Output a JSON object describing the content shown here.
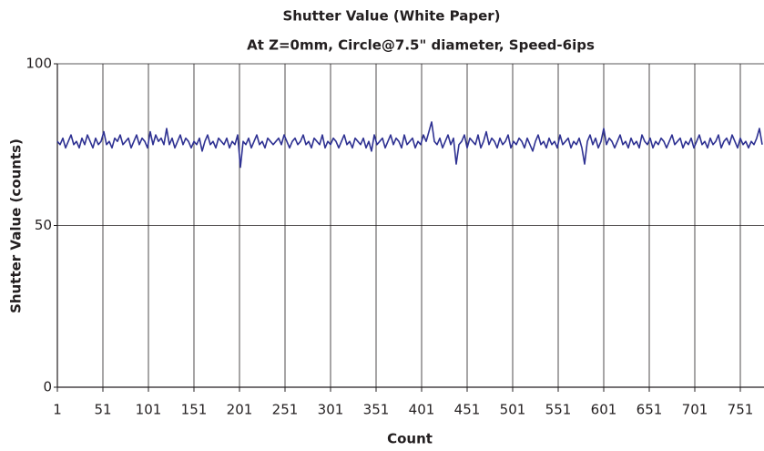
{
  "chart_data": {
    "type": "line",
    "title": "Shutter Value (White Paper)",
    "subtitle": "At Z=0mm, Circle@7.5\" diameter, Speed-6ips",
    "x_label": "Count",
    "y_label": "Shutter Value (counts)",
    "xlim": [
      1,
      777
    ],
    "ylim": [
      0,
      100
    ],
    "xticks": [
      1,
      51,
      101,
      151,
      201,
      251,
      301,
      351,
      401,
      451,
      501,
      551,
      601,
      651,
      701,
      751
    ],
    "yticks": [
      0,
      50,
      100
    ],
    "grid": true,
    "x": [
      1,
      4,
      7,
      10,
      13,
      16,
      19,
      22,
      25,
      28,
      31,
      34,
      37,
      40,
      43,
      46,
      49,
      52,
      55,
      58,
      61,
      64,
      67,
      70,
      73,
      76,
      79,
      82,
      85,
      88,
      91,
      94,
      97,
      100,
      103,
      106,
      109,
      112,
      115,
      118,
      121,
      124,
      127,
      130,
      133,
      136,
      139,
      142,
      145,
      148,
      151,
      154,
      157,
      160,
      163,
      166,
      169,
      172,
      175,
      178,
      181,
      184,
      187,
      190,
      193,
      196,
      199,
      202,
      205,
      208,
      211,
      214,
      217,
      220,
      223,
      226,
      229,
      232,
      235,
      238,
      241,
      244,
      247,
      250,
      253,
      256,
      259,
      262,
      265,
      268,
      271,
      274,
      277,
      280,
      283,
      286,
      289,
      292,
      295,
      298,
      301,
      304,
      307,
      310,
      313,
      316,
      319,
      322,
      325,
      328,
      331,
      334,
      337,
      340,
      343,
      346,
      349,
      352,
      355,
      358,
      361,
      364,
      367,
      370,
      373,
      376,
      379,
      382,
      385,
      388,
      391,
      394,
      397,
      400,
      403,
      406,
      409,
      412,
      415,
      418,
      421,
      424,
      427,
      430,
      433,
      436,
      439,
      442,
      445,
      448,
      451,
      454,
      457,
      460,
      463,
      466,
      469,
      472,
      475,
      478,
      481,
      484,
      487,
      490,
      493,
      496,
      499,
      502,
      505,
      508,
      511,
      514,
      517,
      520,
      523,
      526,
      529,
      532,
      535,
      538,
      541,
      544,
      547,
      550,
      553,
      556,
      559,
      562,
      565,
      568,
      571,
      574,
      577,
      580,
      583,
      586,
      589,
      592,
      595,
      598,
      601,
      604,
      607,
      610,
      613,
      616,
      619,
      622,
      625,
      628,
      631,
      634,
      637,
      640,
      643,
      646,
      649,
      652,
      655,
      658,
      661,
      664,
      667,
      670,
      673,
      676,
      679,
      682,
      685,
      688,
      691,
      694,
      697,
      700,
      703,
      706,
      709,
      712,
      715,
      718,
      721,
      724,
      727,
      730,
      733,
      736,
      739,
      742,
      745,
      748,
      751,
      754,
      757,
      760,
      763,
      766,
      769,
      772,
      775
    ],
    "series": [
      {
        "name": "Shutter Value",
        "color": "#2e3192",
        "values": [
          76,
          75,
          77,
          74,
          76,
          78,
          75,
          76,
          74,
          77,
          75,
          78,
          76,
          74,
          77,
          75,
          76,
          79,
          75,
          76,
          74,
          77,
          76,
          78,
          75,
          76,
          77,
          74,
          76,
          78,
          75,
          77,
          76,
          74,
          79,
          75,
          78,
          76,
          77,
          75,
          80,
          75,
          77,
          74,
          76,
          78,
          75,
          77,
          76,
          74,
          76,
          75,
          77,
          73,
          76,
          78,
          75,
          76,
          74,
          77,
          76,
          75,
          77,
          74,
          76,
          75,
          78,
          68,
          76,
          75,
          77,
          74,
          76,
          78,
          75,
          76,
          74,
          77,
          76,
          75,
          76,
          77,
          75,
          78,
          76,
          74,
          76,
          77,
          75,
          76,
          78,
          75,
          76,
          74,
          77,
          76,
          75,
          78,
          74,
          76,
          75,
          77,
          76,
          74,
          76,
          78,
          75,
          76,
          74,
          77,
          76,
          75,
          77,
          74,
          76,
          73,
          78,
          75,
          76,
          77,
          74,
          76,
          78,
          75,
          77,
          76,
          74,
          78,
          75,
          76,
          77,
          74,
          76,
          75,
          78,
          76,
          79,
          82,
          76,
          75,
          77,
          74,
          76,
          78,
          75,
          77,
          69,
          75,
          76,
          78,
          74,
          77,
          76,
          75,
          78,
          74,
          76,
          79,
          75,
          77,
          76,
          74,
          77,
          75,
          76,
          78,
          74,
          76,
          75,
          77,
          76,
          74,
          77,
          75,
          73,
          76,
          78,
          75,
          76,
          74,
          77,
          75,
          76,
          74,
          78,
          75,
          76,
          77,
          74,
          76,
          75,
          77,
          74,
          69,
          76,
          78,
          75,
          77,
          74,
          76,
          80,
          75,
          77,
          76,
          74,
          76,
          78,
          75,
          76,
          74,
          77,
          75,
          76,
          74,
          78,
          76,
          75,
          77,
          74,
          76,
          75,
          77,
          76,
          74,
          76,
          78,
          75,
          76,
          77,
          74,
          76,
          75,
          77,
          74,
          76,
          78,
          75,
          76,
          74,
          77,
          75,
          76,
          78,
          74,
          76,
          77,
          75,
          78,
          76,
          74,
          77,
          75,
          76,
          74,
          76,
          75,
          77,
          80,
          75
        ]
      }
    ]
  }
}
